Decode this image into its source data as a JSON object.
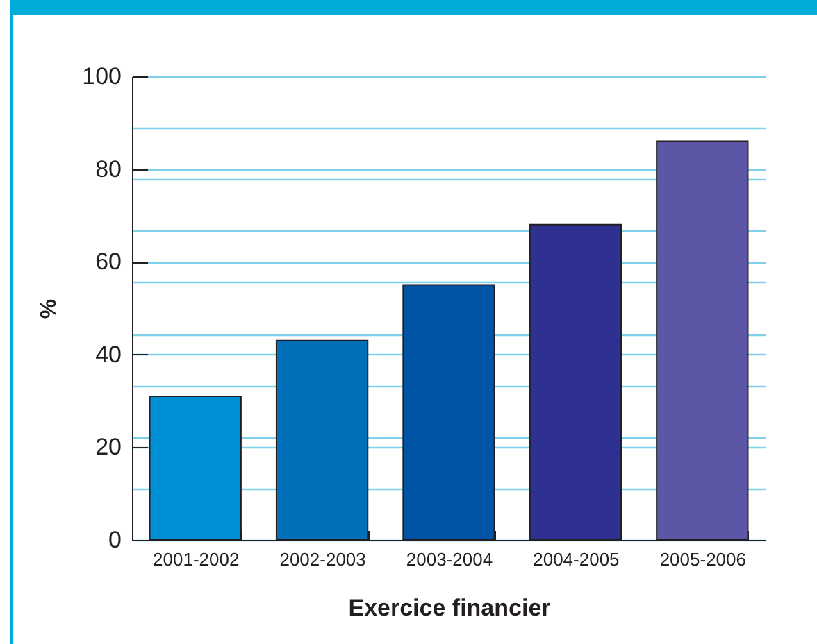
{
  "chart_data": {
    "type": "bar",
    "categories": [
      "2001-2002",
      "2002-2003",
      "2003-2004",
      "2004-2005",
      "2005-2006"
    ],
    "values": [
      31,
      43,
      55,
      68,
      86
    ],
    "colors": [
      "#0090d6",
      "#0070bb",
      "#0054a6",
      "#2e3192",
      "#5b57a6"
    ],
    "xlabel": "Exercice financier",
    "ylabel": "%",
    "ylim": [
      0,
      100
    ],
    "yticks": [
      0,
      {
        "value": 11.1,
        "label": null
      },
      20,
      {
        "value": 22.2,
        "label": null
      },
      {
        "value": 33.3,
        "label": null
      },
      40,
      {
        "value": 44.4,
        "label": null
      },
      {
        "value": 55.6,
        "label": null
      },
      60,
      {
        "value": 66.7,
        "label": null
      },
      {
        "value": 77.8,
        "label": null
      },
      80,
      {
        "value": 88.9,
        "label": null
      },
      100
    ],
    "grid": "y"
  }
}
